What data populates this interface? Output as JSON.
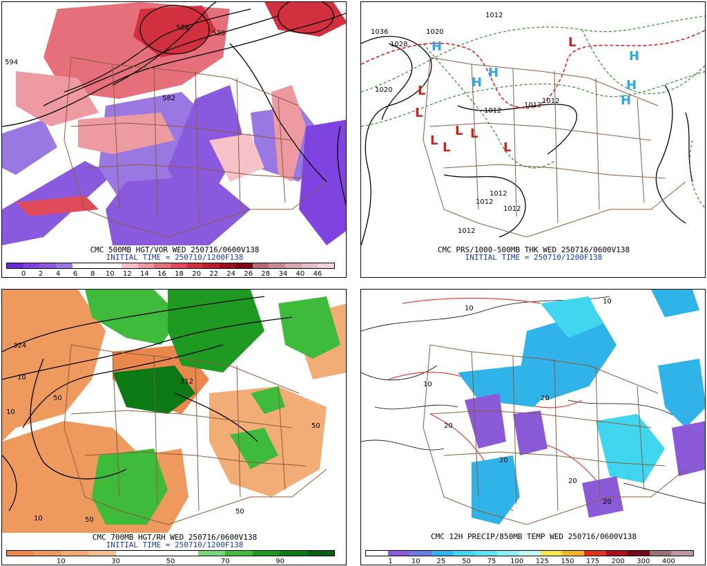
{
  "panels": [
    {
      "title": "CMC 500MB HGT/VOR WED 250716/0600V138",
      "init": "INITIAL TIME = 250710/1200F138",
      "scale": {
        "colors": [
          "#6a2bd8",
          "#7f43e0",
          "#8a5ade",
          "#9a78e2",
          "#ffffff",
          "#ffffff",
          "#ffffff",
          "#f6c2c8",
          "#ee9aa2",
          "#e66f7c",
          "#df4b5a",
          "#d3303f",
          "#b81e2c",
          "#9c0f1c",
          "#7e0512",
          "#b86a74",
          "#c88b95",
          "#d6a6b0",
          "#e4bec6",
          "#f0d3d9"
        ],
        "labels": [
          "0",
          "2",
          "4",
          "6",
          "8",
          "10",
          "12",
          "14",
          "16",
          "18",
          "20",
          "22",
          "24",
          "26",
          "28",
          "34",
          "40",
          "46"
        ]
      },
      "map_labels": [
        "594",
        "582",
        "588",
        "520"
      ]
    },
    {
      "title": "CMC PRS/1000-500MB THK WED 250716/0600V138",
      "init": "INITIAL TIME = 250710/1200F138",
      "map_labels": [
        "1036",
        "1028",
        "1020",
        "1020",
        "1012",
        "1012",
        "1012",
        "1012",
        "1012",
        "1012",
        "1012",
        "1012"
      ],
      "highs": [
        "H",
        "H",
        "H",
        "H",
        "H",
        "H"
      ],
      "lows": [
        "L",
        "L",
        "L",
        "L",
        "L",
        "L",
        "L",
        "L"
      ]
    },
    {
      "title": "CMC 700MB HGT/RH WED 250716/0600V138",
      "init": "INITIAL TIME = 250710/1200F138",
      "scale": {
        "colors": [
          "#e9874c",
          "#ee9a5f",
          "#f2ad77",
          "#f6c092",
          "#ffffff",
          "#ffffff",
          "#ffffff",
          "#7bd67a",
          "#3fbb3c",
          "#1e9a23",
          "#0b7a14",
          "#076010"
        ],
        "labels": [
          "10",
          "30",
          "50",
          "70",
          "90"
        ]
      },
      "map_labels": [
        "324",
        "312",
        "10",
        "50",
        "50",
        "50",
        "10",
        "10",
        "50"
      ]
    },
    {
      "title": "CMC 12H PRECIP/850MB TEMP WED 250716/0600V138",
      "init": "",
      "scale": {
        "colors": [
          "#ffffff",
          "#8a5ad8",
          "#6c7de6",
          "#2fb3e8",
          "#41d6f0",
          "#5ee4f5",
          "#8ef0f8",
          "#c4f7fa",
          "#f6e84a",
          "#f2b428",
          "#e0321e",
          "#a8131b",
          "#700a14",
          "#9c7078",
          "#b99aa2"
        ],
        "labels": [
          "1",
          "10",
          "25",
          "50",
          "75",
          "100",
          "125",
          "150",
          "175",
          "200",
          "300",
          "400"
        ]
      },
      "map_labels": [
        "10",
        "10",
        "20",
        "20",
        "20",
        "20",
        "20",
        "10"
      ]
    }
  ]
}
